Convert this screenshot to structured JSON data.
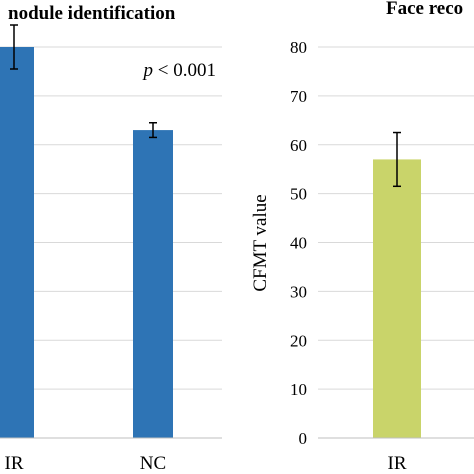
{
  "chart_data": [
    {
      "type": "bar",
      "title": "nodule identification",
      "categories": [
        "IR",
        "NC"
      ],
      "values": [
        80,
        63
      ],
      "error": [
        4.5,
        1.5
      ],
      "annotation": {
        "p": "p",
        "rest": " < 0.001"
      },
      "ylim": [
        0,
        80
      ],
      "grid": true,
      "colors": {
        "bar": "#2e74b5",
        "grid": "#d9d9d9",
        "axis": "#bfbfbf"
      }
    },
    {
      "type": "bar",
      "title": "Face reco",
      "categories": [
        "IR"
      ],
      "values": [
        57
      ],
      "error": [
        5.5
      ],
      "ylabel": "CFMT value",
      "ylim": [
        0,
        80
      ],
      "yticks": [
        0,
        10,
        20,
        30,
        40,
        50,
        60,
        70,
        80
      ],
      "grid": true,
      "colors": {
        "bar": "#c9d46a",
        "grid": "#d9d9d9",
        "axis": "#bfbfbf"
      }
    }
  ]
}
